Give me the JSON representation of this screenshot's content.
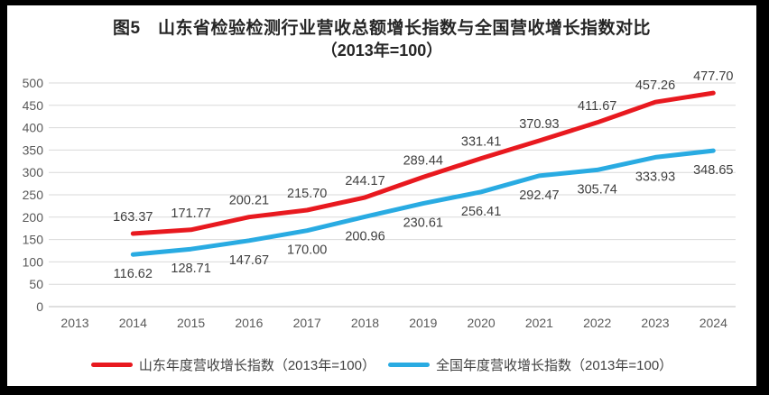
{
  "title": {
    "line1": "图5　山东省检验检测行业营收总额增长指数与全国营收增长指数对比",
    "line2": "（2013年=100）"
  },
  "chart_data": {
    "type": "line",
    "categories": [
      "2013",
      "2014",
      "2015",
      "2016",
      "2017",
      "2018",
      "2019",
      "2020",
      "2021",
      "2022",
      "2023",
      "2024"
    ],
    "series": [
      {
        "name": "山东年度营收增长指数（2013年=100）",
        "color": "#e8191f",
        "label_position": "above",
        "values": [
          null,
          163.37,
          171.77,
          200.21,
          215.7,
          244.17,
          289.44,
          331.41,
          370.93,
          411.67,
          457.26,
          477.7
        ]
      },
      {
        "name": "全国年度营收增长指数（2013年=100）",
        "color": "#29abe2",
        "label_position": "below",
        "values": [
          null,
          116.62,
          128.71,
          147.67,
          170.0,
          200.96,
          230.61,
          256.41,
          292.47,
          305.74,
          333.93,
          348.65
        ]
      }
    ],
    "ylim": [
      0,
      500
    ],
    "ytick_step": 50,
    "grid": "horizontal",
    "legend_position": "bottom",
    "value_label_decimals": 2
  },
  "colors": {
    "frame": "#000000",
    "grid_line": "#d9d9d9",
    "axis_line": "#bfbfbf",
    "tick_text": "#595959",
    "value_label_text": "#3f3f3f"
  }
}
